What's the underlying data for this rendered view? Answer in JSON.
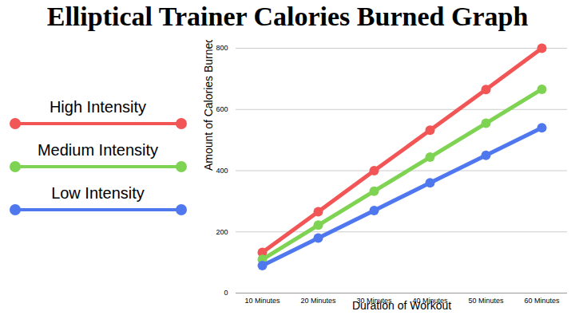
{
  "chart_data": {
    "type": "line",
    "title": "Elliptical Trainer Calories Burned Graph",
    "x_label": "Duration of Workout",
    "y_label": "Amount of Calories Burned",
    "categories": [
      "10 Minutes",
      "20 Minutes",
      "30 Minutes",
      "40 Minutes",
      "50 Minutes",
      "60 Minutes"
    ],
    "series": [
      {
        "name": "High Intensity",
        "color": "#f25555",
        "values": [
          133,
          266,
          400,
          532,
          665,
          800
        ]
      },
      {
        "name": "Medium Intensity",
        "color": "#7fd352",
        "values": [
          110,
          222,
          333,
          444,
          555,
          666
        ]
      },
      {
        "name": "Low Intensity",
        "color": "#5078ee",
        "values": [
          90,
          180,
          270,
          360,
          450,
          540
        ]
      }
    ],
    "ylim": [
      0,
      800
    ],
    "yticks": [
      0,
      200,
      400,
      600,
      800
    ],
    "grid": true,
    "legend": "left",
    "marker": "circle",
    "line_style": "solid"
  }
}
